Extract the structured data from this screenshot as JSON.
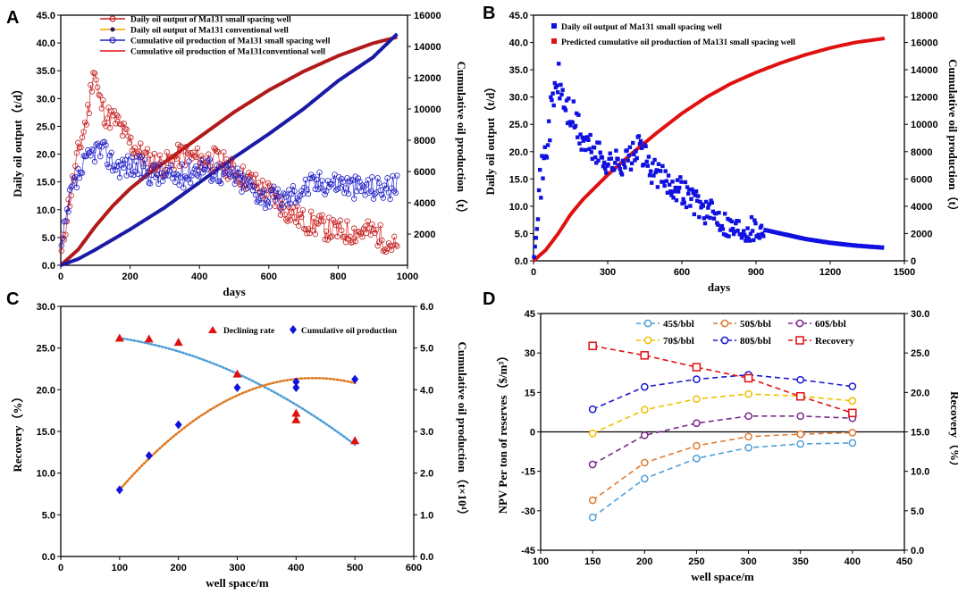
{
  "chart_data": [
    {
      "panel": "A",
      "type": "line",
      "xlabel": "days",
      "ylabel": "Daily oil output（t/d）",
      "y2label": "Cumulative oil production（t）",
      "xlim": [
        0,
        1000
      ],
      "ylim": [
        0,
        45
      ],
      "y2lim": [
        0,
        16000
      ],
      "xticks": [
        "0",
        "200",
        "400",
        "600",
        "800",
        "1000"
      ],
      "yticks": [
        "0.0",
        "5.0",
        "10.0",
        "15.0",
        "20.0",
        "25.0",
        "30.0",
        "35.0",
        "40.0",
        "45.0"
      ],
      "y2ticks": [
        "2000",
        "4000",
        "6000",
        "8000",
        "10000",
        "12000",
        "14000",
        "16000"
      ],
      "legend": [
        "Daily oil output of Ma131 small spacing well",
        "Daily oil output of Ma131 conventional  well",
        "Cumulative oil production  of Ma131 small spacing well",
        "Cumulative oil production  of Ma131conventional  well"
      ],
      "series": [
        {
          "name": "Daily oil output of Ma131 small spacing well",
          "axis": "left",
          "x": [
            0,
            20,
            50,
            80,
            95,
            110,
            130,
            160,
            200,
            250,
            300,
            350,
            400,
            450,
            500,
            550,
            600,
            650,
            700,
            750,
            800,
            850,
            900,
            950,
            970
          ],
          "values": [
            1,
            10,
            20,
            28,
            36,
            30,
            27,
            26,
            22,
            19,
            18,
            20,
            19,
            19,
            17,
            15,
            13,
            10,
            8,
            7,
            6,
            6,
            6,
            4,
            3
          ]
        },
        {
          "name": "Daily oil output of Ma131 conventional  well",
          "axis": "left",
          "x": [
            0,
            30,
            60,
            100,
            130,
            160,
            200,
            250,
            300,
            350,
            400,
            450,
            500,
            550,
            600,
            650,
            700,
            750,
            800,
            850,
            900,
            950,
            970
          ],
          "values": [
            2,
            13,
            17,
            21,
            20,
            18,
            18,
            17,
            16,
            16,
            18,
            17,
            16,
            14,
            12,
            12,
            14,
            15,
            15,
            14,
            14,
            14,
            14
          ]
        },
        {
          "name": "Cumulative oil production  of Ma131 small spacing well",
          "axis": "right",
          "x": [
            0,
            50,
            100,
            150,
            200,
            250,
            300,
            350,
            400,
            450,
            500,
            600,
            700,
            800,
            900,
            970
          ],
          "values": [
            0,
            400,
            1000,
            1650,
            2300,
            3000,
            3700,
            4500,
            5300,
            6100,
            6900,
            8400,
            10000,
            11800,
            13300,
            14800
          ]
        },
        {
          "name": "Cumulative oil production  of Ma131conventional  well",
          "axis": "right",
          "x": [
            0,
            50,
            100,
            150,
            200,
            250,
            300,
            350,
            400,
            450,
            500,
            600,
            700,
            800,
            900,
            970
          ],
          "values": [
            0,
            1000,
            2500,
            3800,
            4900,
            5800,
            6600,
            7400,
            8200,
            9000,
            9800,
            11200,
            12400,
            13400,
            14200,
            14600
          ]
        }
      ]
    },
    {
      "panel": "B",
      "type": "scatter",
      "xlabel": "days",
      "ylabel": "Daily oil output（t/d）",
      "y2label": "Cumulative oil production（t）",
      "xlim": [
        0,
        1500
      ],
      "ylim": [
        0,
        45
      ],
      "y2lim": [
        0,
        18000
      ],
      "xticks": [
        "0",
        "300",
        "600",
        "900",
        "1200",
        "1500"
      ],
      "yticks": [
        "0.0",
        "5.0",
        "10.0",
        "15.0",
        "20.0",
        "25.0",
        "30.0",
        "35.0",
        "40.0",
        "45.0"
      ],
      "y2ticks": [
        "0",
        "2000",
        "4000",
        "6000",
        "8000",
        "10000",
        "12000",
        "14000",
        "16000",
        "18000"
      ],
      "legend": [
        "Daily oil output of Ma131 small spacing well",
        "Predicted cumulative oil production  of Ma131 small spacing well"
      ],
      "series": [
        {
          "name": "Daily oil output of Ma131 small spacing well",
          "axis": "left",
          "x": [
            0,
            20,
            50,
            80,
            100,
            130,
            160,
            200,
            250,
            300,
            350,
            400,
            430,
            470,
            520,
            560,
            600,
            650,
            700,
            750,
            800,
            850,
            900,
            950,
            1000,
            1100,
            1200,
            1300,
            1420
          ],
          "values": [
            3,
            12,
            20,
            30,
            33,
            28,
            26,
            22,
            20,
            18,
            18,
            19,
            21,
            17,
            15,
            14,
            13,
            11,
            9,
            8,
            6,
            6,
            6,
            5.5,
            5,
            4,
            3.3,
            2.8,
            2.4
          ]
        },
        {
          "name": "Predicted cumulative oil production  of Ma131 small spacing well",
          "axis": "right",
          "x": [
            0,
            50,
            100,
            150,
            200,
            300,
            400,
            500,
            600,
            700,
            800,
            900,
            1000,
            1100,
            1200,
            1300,
            1420
          ],
          "values": [
            0,
            800,
            2000,
            3400,
            4500,
            6300,
            7900,
            9400,
            10800,
            12000,
            13000,
            13800,
            14500,
            15100,
            15600,
            16000,
            16300
          ]
        }
      ]
    },
    {
      "panel": "C",
      "type": "scatter",
      "xlabel": "well space/m",
      "ylabel": "Recovery（%）",
      "y2label": "Cumulative oil production（t×10⁴）",
      "xlim": [
        0,
        600
      ],
      "ylim": [
        0,
        30
      ],
      "y2lim": [
        0,
        6
      ],
      "xticks": [
        "0",
        "100",
        "200",
        "300",
        "400",
        "500",
        "600"
      ],
      "yticks": [
        "0.0",
        "5.0",
        "10.0",
        "15.0",
        "20.0",
        "25.0",
        "30.0"
      ],
      "y2ticks": [
        "0.0",
        "1.0",
        "2.0",
        "3.0",
        "4.0",
        "5.0",
        "6.0"
      ],
      "legend": [
        "Declining rate",
        "Cumulative oil production"
      ],
      "series": [
        {
          "name": "Declining rate",
          "axis": "left",
          "x": [
            100,
            150,
            200,
            300,
            400,
            400,
            500
          ],
          "values": [
            26.2,
            26.1,
            25.7,
            21.9,
            17.2,
            16.4,
            13.9
          ]
        },
        {
          "name": "Cumulative oil production",
          "axis": "right",
          "x": [
            100,
            150,
            200,
            300,
            400,
            400,
            500
          ],
          "values": [
            1.6,
            2.42,
            3.16,
            4.05,
            4.19,
            4.05,
            4.25
          ]
        }
      ]
    },
    {
      "panel": "D",
      "type": "line",
      "xlabel": "well space/m",
      "ylabel": "NPV Per ton of reserves（$/m³）",
      "y2label": "Recovery（%）",
      "xlim": [
        100,
        450
      ],
      "ylim": [
        -45,
        45
      ],
      "y2lim": [
        0,
        30
      ],
      "xticks": [
        "100",
        "150",
        "200",
        "250",
        "300",
        "350",
        "400",
        "450"
      ],
      "yticks": [
        "-45",
        "-30",
        "-15",
        "0",
        "15",
        "30",
        "45"
      ],
      "y2ticks": [
        "0.0",
        "5.0",
        "10.0",
        "15.0",
        "20.0",
        "25.0",
        "30.0"
      ],
      "categories": [
        150,
        200,
        250,
        300,
        350,
        400
      ],
      "legend": [
        "45$/bbl",
        "50$/bbl",
        "60$/bbl",
        "70$/bbl",
        "80$/bbl",
        "Recovery"
      ],
      "series": [
        {
          "name": "45$/bbl",
          "axis": "left",
          "values": [
            -32.5,
            -17.8,
            -10.1,
            -6.0,
            -4.6,
            -4.2
          ]
        },
        {
          "name": "50$/bbl",
          "axis": "left",
          "values": [
            -26.0,
            -11.7,
            -5.3,
            -1.8,
            -0.9,
            -0.3
          ]
        },
        {
          "name": "60$/bbl",
          "axis": "left",
          "values": [
            -12.4,
            -1.3,
            3.3,
            6.0,
            6.0,
            5.2
          ]
        },
        {
          "name": "70$/bbl",
          "axis": "left",
          "values": [
            -0.6,
            8.4,
            12.5,
            14.4,
            13.6,
            11.8
          ]
        },
        {
          "name": "80$/bbl",
          "axis": "left",
          "values": [
            8.6,
            17.1,
            20.0,
            21.7,
            19.8,
            17.3
          ]
        },
        {
          "name": "Recovery",
          "axis": "right",
          "values": [
            25.9,
            24.7,
            23.2,
            21.8,
            19.5,
            17.4
          ]
        }
      ]
    }
  ],
  "panel_labels": [
    "A",
    "B",
    "C",
    "D"
  ],
  "colors": {
    "red": "#e01010",
    "darkred": "#b01a1a",
    "blue": "#1010e0",
    "navy": "#1a1aa8",
    "orange": "#f0a000",
    "dot_orange": "#e07a20",
    "dot_blue": "#4f9ed8",
    "d45": "#4f9ed8",
    "d50": "#e07a30",
    "d60": "#7a2a8a",
    "d70": "#f0c000",
    "d80": "#1a1ad0",
    "drec": "#e01010"
  }
}
